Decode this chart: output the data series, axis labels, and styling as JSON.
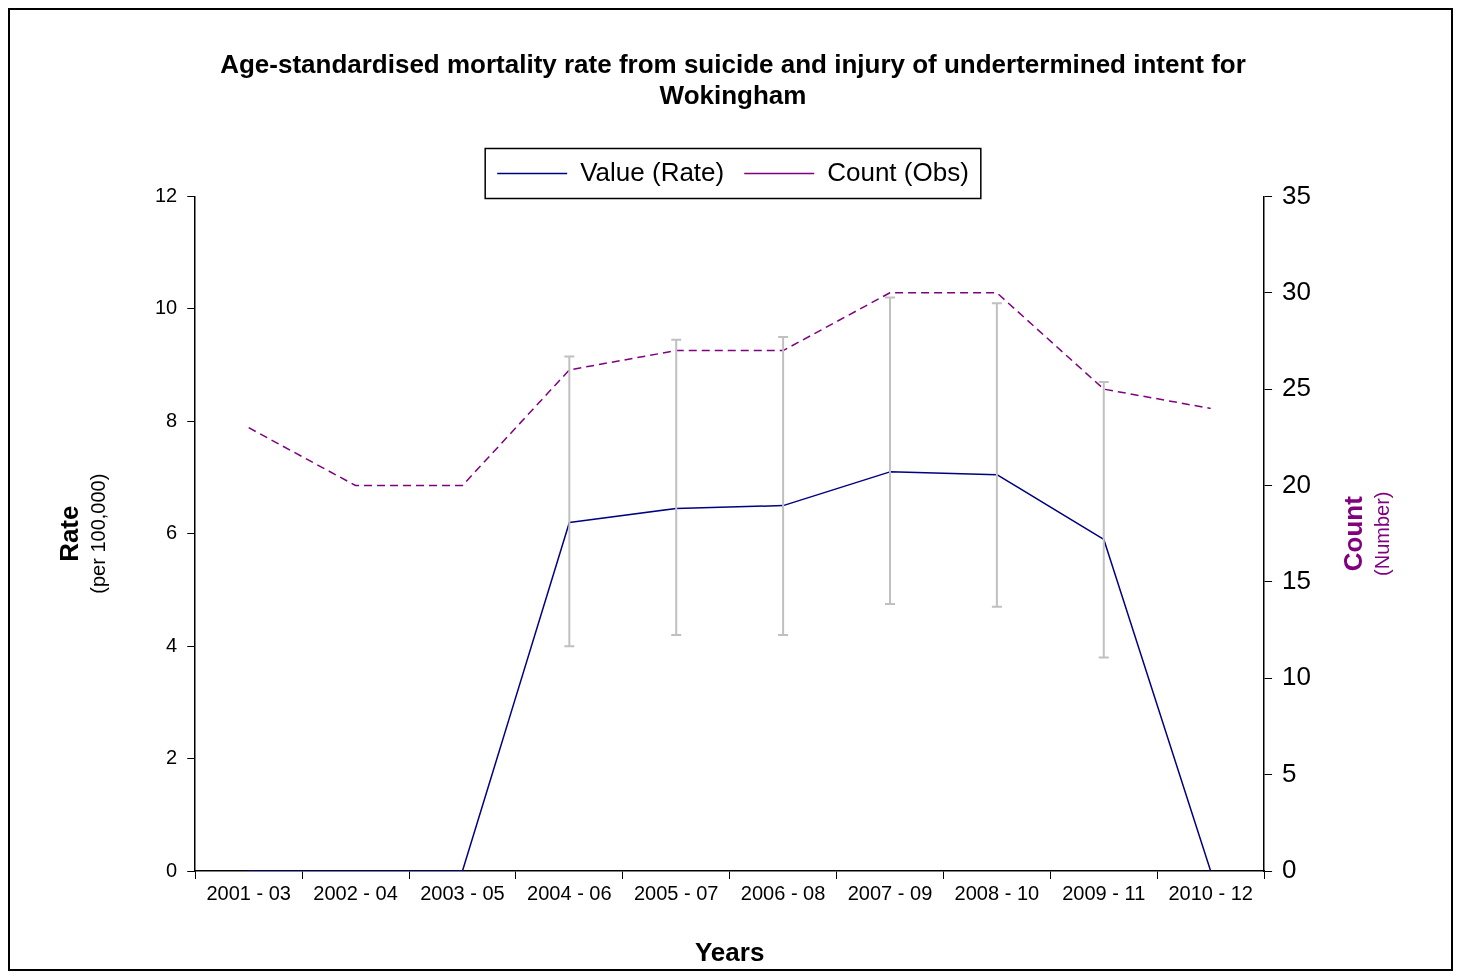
{
  "chart_data": {
    "type": "line",
    "title": "Age-standardised mortality rate from suicide and injury of undertermined intent for Wokingham",
    "xlabel": "Years",
    "ylabel": "Rate\n(per 100,000)",
    "y2label": "Count\n(Number)",
    "categories": [
      "2001 - 03",
      "2002 - 04",
      "2003 - 05",
      "2004 - 06",
      "2005 - 07",
      "2006 - 08",
      "2007 - 09",
      "2008 - 10",
      "2009 - 11",
      "2010 - 12"
    ],
    "series": [
      {
        "name": "Value (Rate)",
        "color": "#000080",
        "line_style": "solid",
        "values": [
          0,
          0,
          0,
          6.2,
          6.45,
          6.5,
          7.1,
          7.05,
          5.9,
          0
        ],
        "errors": [
          null,
          null,
          null,
          [
            4.0,
            9.15
          ],
          [
            4.2,
            9.45
          ],
          [
            4.2,
            9.5
          ],
          [
            4.75,
            10.2
          ],
          [
            4.7,
            10.1
          ],
          [
            3.8,
            8.7
          ],
          null
        ]
      },
      {
        "name": "Count (Obs)",
        "color": "#800080",
        "line_style": "dashed",
        "axis": "y2",
        "values": [
          23,
          20,
          20,
          26,
          27,
          27,
          30,
          30,
          25,
          24
        ]
      }
    ],
    "ylim": [
      0,
      12
    ],
    "yticks": [
      0,
      2,
      4,
      6,
      8,
      10,
      12
    ],
    "y2lim": [
      0,
      35
    ],
    "y2ticks": [
      0,
      5,
      10,
      15,
      20,
      25,
      30,
      35
    ],
    "grid": false,
    "legend": "top",
    "marker": "none"
  }
}
